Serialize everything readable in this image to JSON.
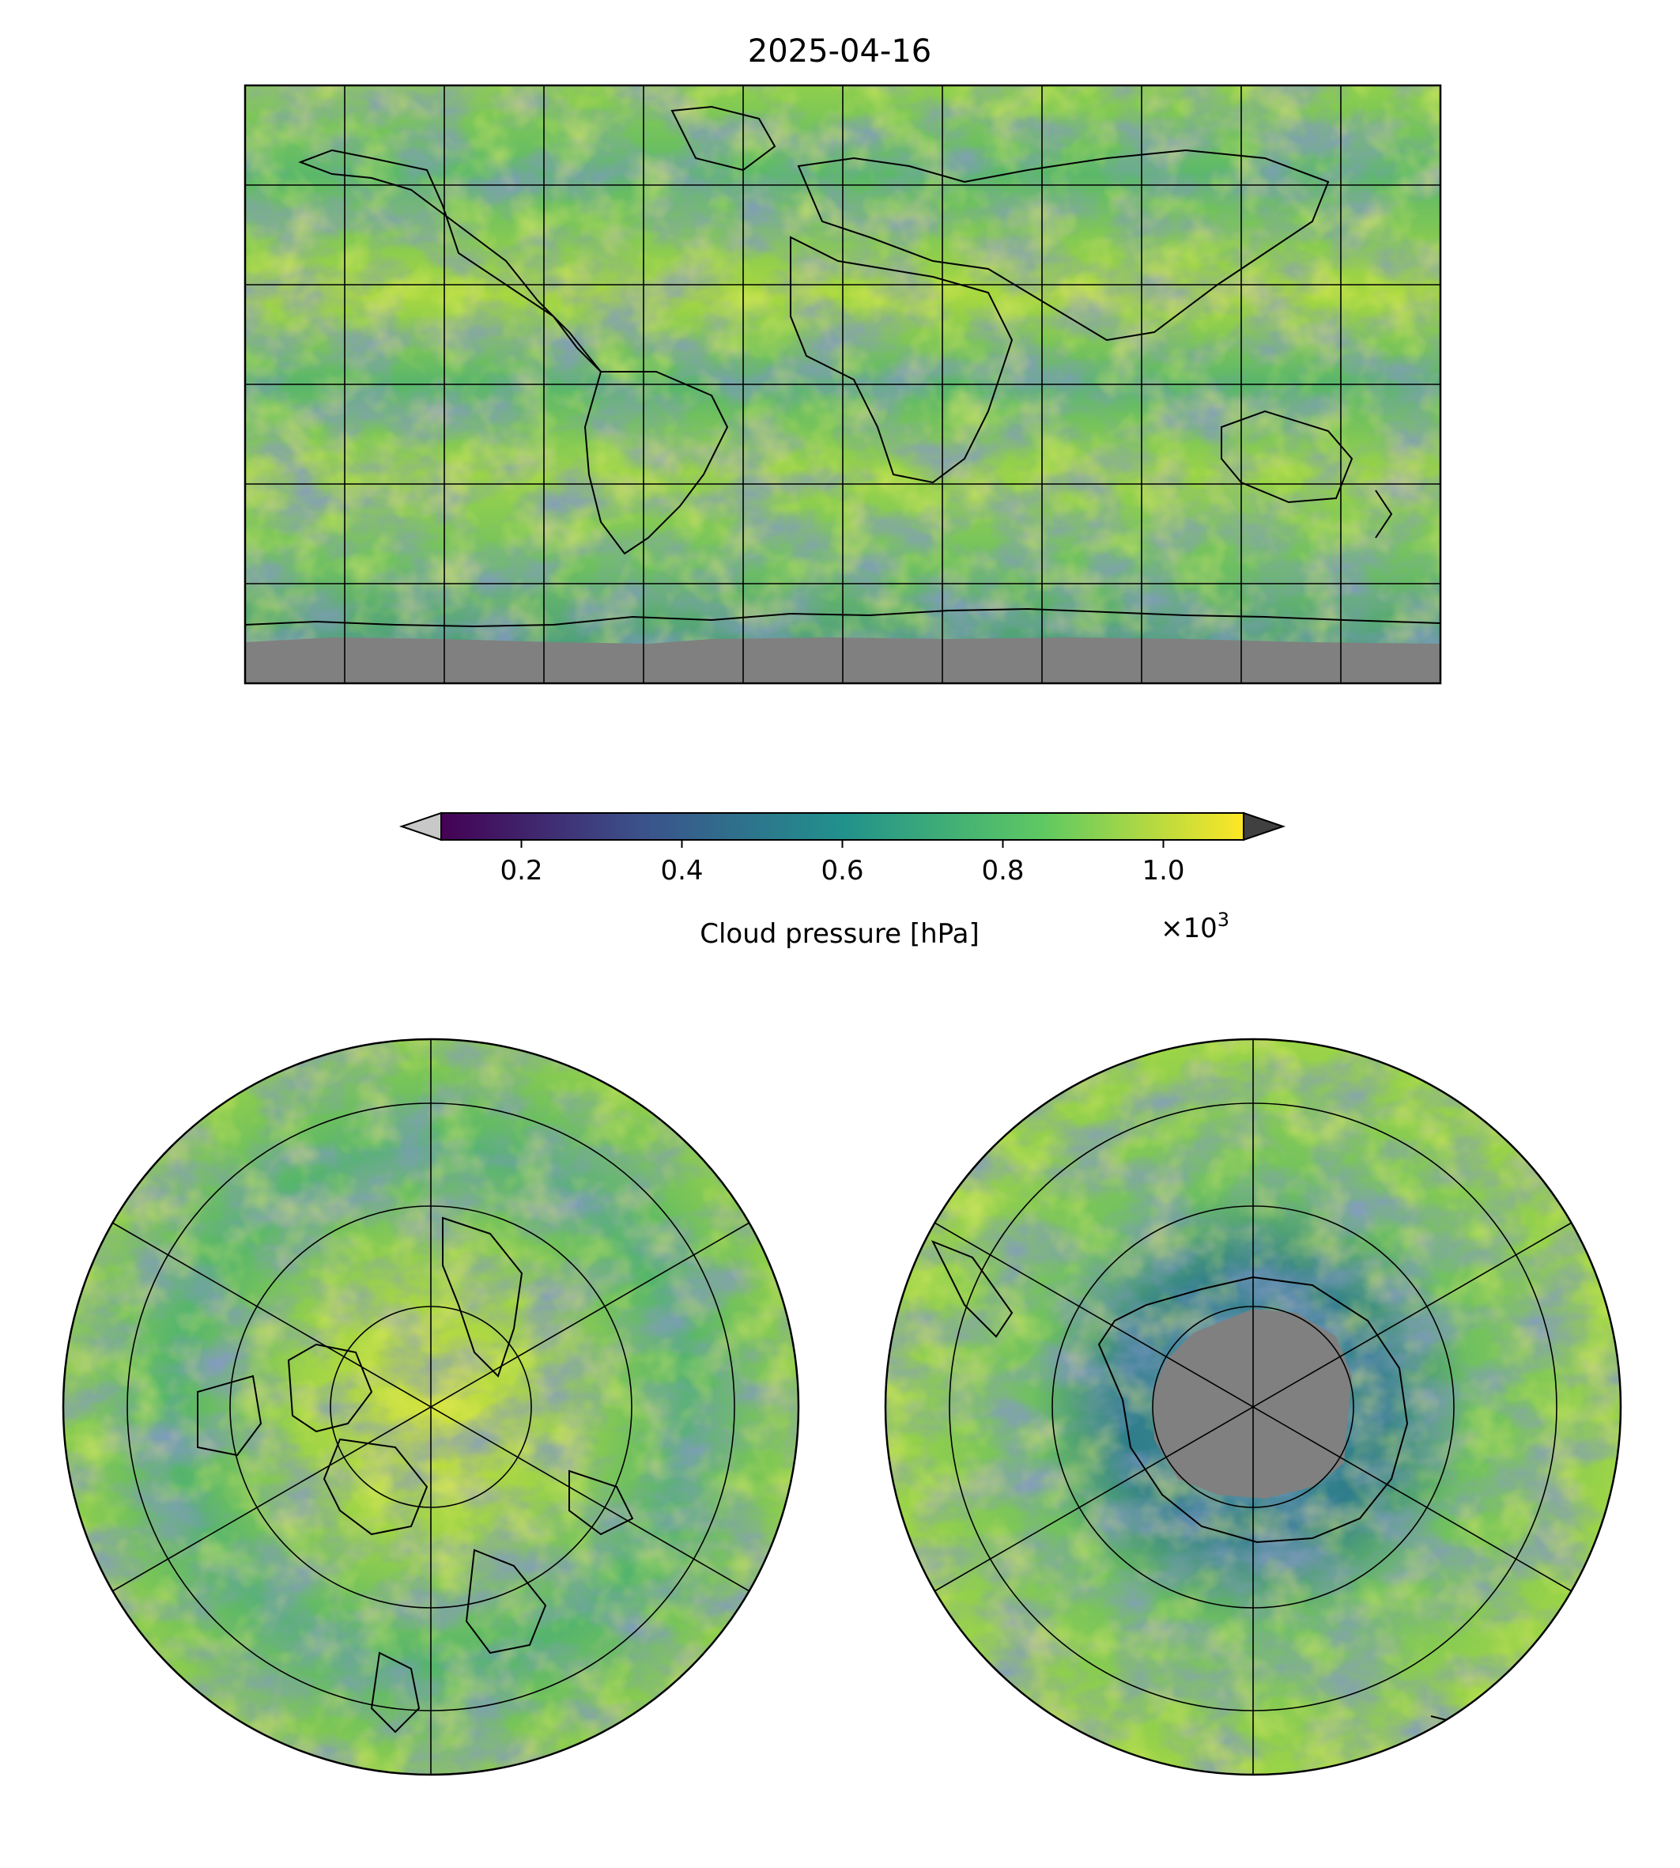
{
  "title": "2025-04-16",
  "colorbar": {
    "label": "Cloud pressure [hPa]",
    "ticks": [
      "0.2",
      "0.4",
      "0.6",
      "0.8",
      "1.0"
    ],
    "tick_values": [
      0.2,
      0.4,
      0.6,
      0.8,
      1.0
    ],
    "range": [
      0.1,
      1.1
    ],
    "offset_prefix": "×10",
    "offset_exponent": "3",
    "colormap": [
      "#440154",
      "#3b528b",
      "#21918c",
      "#5ec962",
      "#fde725"
    ],
    "under_color": "#c8c8c8",
    "over_color": "#404040",
    "extend": "both"
  },
  "maps": {
    "global": {
      "projection": "plate-carree",
      "no_data_color": "#808080"
    },
    "north": {
      "projection": "north-polar-stereographic"
    },
    "south": {
      "projection": "south-polar-stereographic",
      "no_data_color": "#808080"
    }
  }
}
